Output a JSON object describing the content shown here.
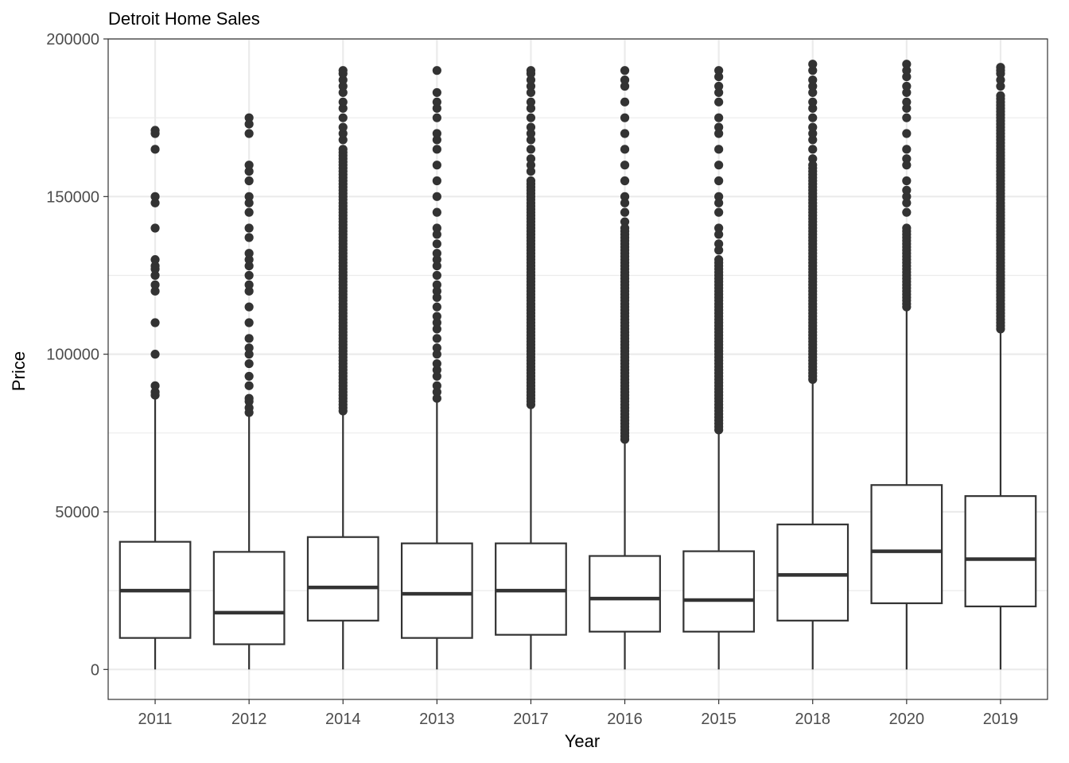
{
  "chart_data": {
    "type": "box",
    "title": "Detroit Home Sales",
    "xlabel": "Year",
    "ylabel": "Price",
    "ylim": [
      -9500,
      200000
    ],
    "yticks": [
      0,
      50000,
      100000,
      150000,
      200000
    ],
    "ytick_labels": [
      "0",
      "50000",
      "100000",
      "150000",
      "200000"
    ],
    "grid": true,
    "colors": {
      "box_stroke": "#333333",
      "box_fill": "#ffffff",
      "grid": "#ebebeb",
      "panel_border": "#333333"
    },
    "categories": [
      "2011",
      "2012",
      "2014",
      "2013",
      "2017",
      "2016",
      "2015",
      "2018",
      "2020",
      "2019"
    ],
    "boxes": [
      {
        "year": "2011",
        "min": 0,
        "q1": 10000,
        "median": 25000,
        "q3": 40500,
        "whisker_high": 86000,
        "outliers": [
          87000,
          88000,
          90000,
          100000,
          110000,
          120000,
          122000,
          125000,
          127000,
          128000,
          130000,
          140000,
          148000,
          150000,
          165000,
          170000,
          171000
        ]
      },
      {
        "year": "2012",
        "min": 0,
        "q1": 8000,
        "median": 18000,
        "q3": 37300,
        "whisker_high": 80500,
        "outliers": [
          81500,
          83000,
          85000,
          86000,
          90000,
          93000,
          97000,
          100000,
          102000,
          105000,
          110000,
          115000,
          120000,
          122000,
          125000,
          128000,
          130000,
          132000,
          137000,
          140000,
          145000,
          148000,
          150000,
          155000,
          158000,
          160000,
          170000,
          173000,
          175000
        ]
      },
      {
        "year": "2014",
        "min": 0,
        "q1": 15500,
        "median": 26000,
        "q3": 42000,
        "whisker_high": 81500,
        "dense_outliers": {
          "from": 82000,
          "to": 165000,
          "step": 1000
        },
        "outliers": [
          168000,
          170000,
          172000,
          175000,
          178000,
          180000,
          183000,
          185000,
          187000,
          189000,
          190000
        ]
      },
      {
        "year": "2013",
        "min": 0,
        "q1": 10000,
        "median": 24000,
        "q3": 40000,
        "whisker_high": 85000,
        "outliers": [
          86000,
          88000,
          90000,
          93000,
          95000,
          97000,
          100000,
          102000,
          105000,
          108000,
          110000,
          112000,
          115000,
          118000,
          120000,
          122000,
          125000,
          128000,
          130000,
          132000,
          135000,
          138000,
          140000,
          145000,
          150000,
          155000,
          160000,
          165000,
          168000,
          170000,
          175000,
          178000,
          180000,
          183000,
          190000
        ]
      },
      {
        "year": "2017",
        "min": 0,
        "q1": 11000,
        "median": 25000,
        "q3": 40000,
        "whisker_high": 83500,
        "dense_outliers": {
          "from": 84000,
          "to": 155000,
          "step": 1000
        },
        "outliers": [
          158000,
          160000,
          162000,
          165000,
          168000,
          170000,
          172000,
          175000,
          178000,
          180000,
          183000,
          185000,
          187000,
          189000,
          190000
        ]
      },
      {
        "year": "2016",
        "min": 0,
        "q1": 12000,
        "median": 22500,
        "q3": 36000,
        "whisker_high": 72500,
        "dense_outliers": {
          "from": 73000,
          "to": 140000,
          "step": 1000
        },
        "outliers": [
          142000,
          145000,
          148000,
          150000,
          155000,
          160000,
          165000,
          170000,
          175000,
          180000,
          185000,
          187000,
          190000
        ]
      },
      {
        "year": "2015",
        "min": 0,
        "q1": 12000,
        "median": 22000,
        "q3": 37500,
        "whisker_high": 75500,
        "dense_outliers": {
          "from": 76000,
          "to": 130000,
          "step": 1000
        },
        "outliers": [
          133000,
          135000,
          138000,
          140000,
          145000,
          148000,
          150000,
          155000,
          160000,
          165000,
          170000,
          172000,
          175000,
          180000,
          183000,
          185000,
          188000,
          190000
        ]
      },
      {
        "year": "2018",
        "min": 0,
        "q1": 15500,
        "median": 30000,
        "q3": 46000,
        "whisker_high": 91500,
        "dense_outliers": {
          "from": 92000,
          "to": 160000,
          "step": 1000
        },
        "outliers": [
          162000,
          165000,
          168000,
          170000,
          172000,
          175000,
          178000,
          180000,
          183000,
          185000,
          187000,
          190000,
          192000
        ]
      },
      {
        "year": "2020",
        "min": 0,
        "q1": 21000,
        "median": 37500,
        "q3": 58500,
        "whisker_high": 114500,
        "dense_outliers": {
          "from": 115000,
          "to": 140000,
          "step": 1000
        },
        "outliers": [
          145000,
          148000,
          150000,
          152000,
          155000,
          160000,
          162000,
          165000,
          170000,
          175000,
          178000,
          180000,
          183000,
          185000,
          188000,
          190000,
          192000
        ]
      },
      {
        "year": "2019",
        "min": 0,
        "q1": 20000,
        "median": 35000,
        "q3": 55000,
        "whisker_high": 107500,
        "dense_outliers": {
          "from": 108000,
          "to": 182000,
          "step": 1000
        },
        "outliers": [
          185000,
          187000,
          189000,
          190000,
          191000
        ]
      }
    ]
  }
}
